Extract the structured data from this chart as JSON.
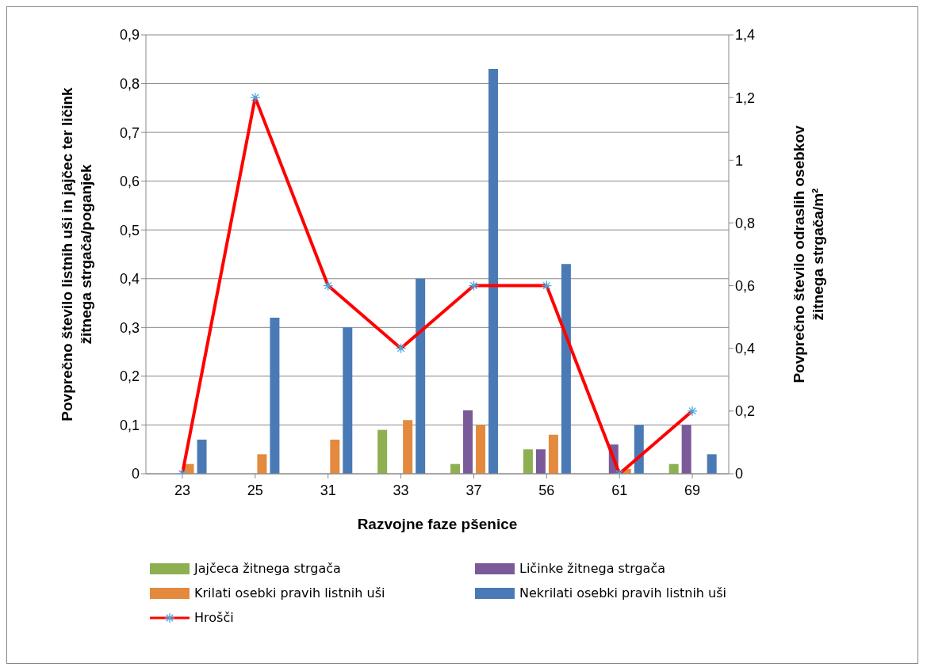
{
  "chart_data": {
    "type": "bar",
    "xlabel": "Razvojne faze pšenice",
    "ylabel": "Povprečno število listnih uši in jajčec ter ličink\nžitnega strgača/poganjek",
    "y2label": "Povprečno število odraslih osebkov\nžitnega strgača/m²",
    "categories": [
      "23",
      "25",
      "31",
      "33",
      "37",
      "56",
      "61",
      "69"
    ],
    "series": [
      {
        "name": "Jajčeca žitnega strgača",
        "color": "#8eb050",
        "values": [
          0,
          0,
          0,
          0.09,
          0.02,
          0.05,
          0,
          0.02
        ]
      },
      {
        "name": "Ličinke žitnega strgača",
        "color": "#7a5a98",
        "values": [
          0,
          0,
          0,
          0,
          0.13,
          0.05,
          0.06,
          0.1
        ]
      },
      {
        "name": "Krilati osebki pravih listnih uši",
        "color": "#e38a3e",
        "values": [
          0.02,
          0.04,
          0.07,
          0.11,
          0.1,
          0.08,
          0.01,
          0
        ]
      },
      {
        "name": "Nekrilati osebki pravih listnih uši",
        "color": "#4a7ab5",
        "values": [
          0.07,
          0.32,
          0.3,
          0.4,
          0.83,
          0.43,
          0.1,
          0.04
        ]
      },
      {
        "name": "Hrošči",
        "type": "line",
        "axis": "y2",
        "color": "#ff0000",
        "marker": "cross",
        "values": [
          0,
          1.2,
          0.6,
          0.4,
          0.6,
          0.6,
          0,
          0.2
        ]
      }
    ],
    "ylim": [
      0,
      0.9
    ],
    "yticks": [
      0,
      {
        "value": 0.1,
        "label": "0,1"
      },
      {
        "value": 0.2,
        "label": "0,2"
      },
      {
        "value": 0.3,
        "label": "0,3"
      },
      {
        "value": 0.4,
        "label": "0,4"
      },
      {
        "value": 0.5,
        "label": "0,5"
      },
      {
        "value": 0.6,
        "label": "0,6"
      },
      {
        "value": 0.7,
        "label": "0,7"
      },
      {
        "value": 0.8,
        "label": "0,8"
      },
      {
        "value": 0.9,
        "label": "0,9"
      }
    ],
    "y2lim": [
      0,
      1.4
    ],
    "y2ticks": [
      0,
      {
        "value": 0.2,
        "label": "0,2"
      },
      {
        "value": 0.4,
        "label": "0,4"
      },
      {
        "value": 0.6,
        "label": "0,6"
      },
      {
        "value": 0.8,
        "label": "0,8"
      },
      1,
      {
        "value": 1.2,
        "label": "1,2"
      },
      {
        "value": 1.4,
        "label": "1,4"
      }
    ],
    "grid": "y",
    "legend": "bottom"
  }
}
